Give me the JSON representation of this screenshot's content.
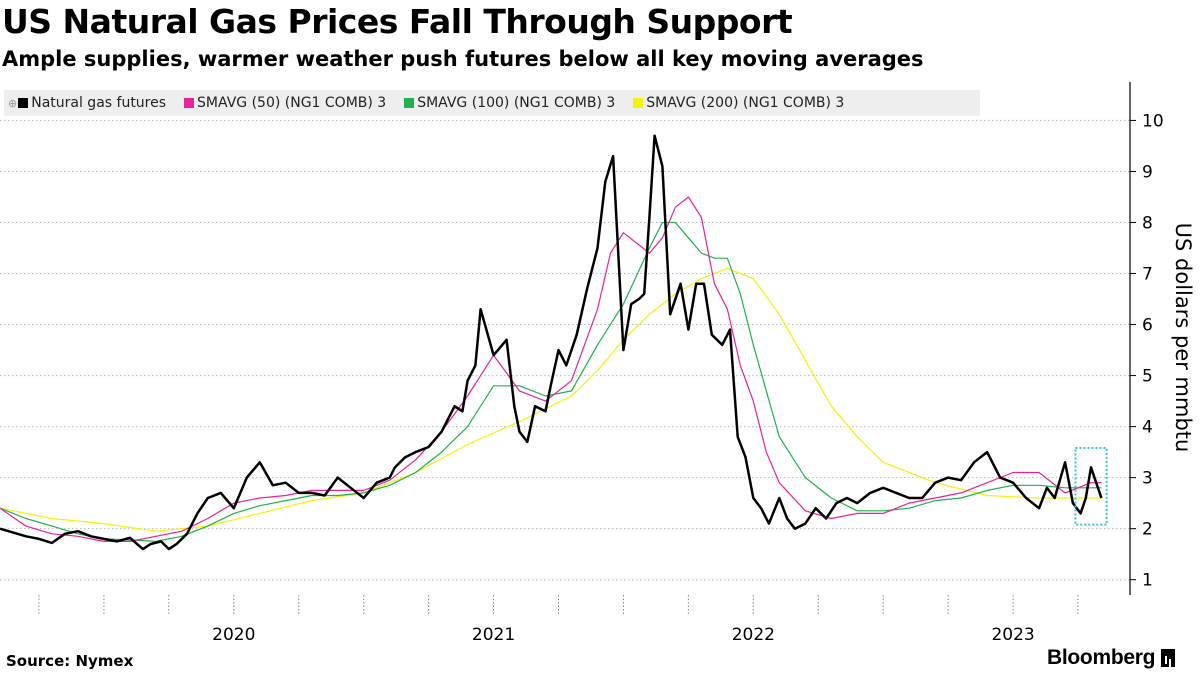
{
  "header": {
    "title": "US Natural Gas Prices Fall Through Support",
    "subtitle": "Ample supplies, warmer weather push futures below all key moving averages"
  },
  "footer": {
    "source": "Source: Nymex",
    "brand": "Bloomberg"
  },
  "colors": {
    "price": "#000000",
    "sma50": "#e8239b",
    "sma100": "#22b14c",
    "sma200": "#f2f20a",
    "highlight": "#3fbfd6",
    "grid": "#b9b9b9"
  },
  "chart_data": {
    "type": "line",
    "title": "US Natural Gas Prices Fall Through Support",
    "subtitle": "Ample supplies, warmer weather push futures below all key moving averages",
    "ylabel": "US dollars per mmbtu",
    "y_axis_position": "right",
    "ylim": [
      0.7,
      10.4
    ],
    "y_ticks": [
      1,
      2,
      3,
      4,
      5,
      6,
      7,
      8,
      9,
      10
    ],
    "x_range": [
      2019.6,
      2023.95
    ],
    "x_ticks": [
      {
        "value": 2020.0,
        "label": "2020"
      },
      {
        "value": 2021.0,
        "label": "2021"
      },
      {
        "value": 2022.0,
        "label": "2022"
      },
      {
        "value": 2023.0,
        "label": "2023"
      }
    ],
    "grid": "horizontal",
    "legend": "top-left",
    "highlight_region": {
      "x": [
        2023.74,
        2023.86
      ],
      "y": [
        2.08,
        3.58
      ],
      "style": "dotted"
    },
    "series": [
      {
        "name": "Natural gas futures",
        "color_key": "price",
        "x": [
          2019.6,
          2019.7,
          2019.75,
          2019.8,
          2019.85,
          2019.9,
          2019.95,
          2020.0,
          2020.05,
          2020.1,
          2020.15,
          2020.18,
          2020.22,
          2020.25,
          2020.28,
          2020.32,
          2020.36,
          2020.4,
          2020.45,
          2020.5,
          2020.55,
          2020.6,
          2020.65,
          2020.7,
          2020.75,
          2020.8,
          2020.85,
          2020.9,
          2020.95,
          2021.0,
          2021.05,
          2021.1,
          2021.12,
          2021.16,
          2021.2,
          2021.25,
          2021.3,
          2021.35,
          2021.38,
          2021.4,
          2021.43,
          2021.45,
          2021.5,
          2021.55,
          2021.58,
          2021.6,
          2021.63,
          2021.66,
          2021.7,
          2021.72,
          2021.75,
          2021.78,
          2021.82,
          2021.86,
          2021.9,
          2021.93,
          2021.96,
          2022.0,
          2022.03,
          2022.06,
          2022.08,
          2022.1,
          2022.12,
          2022.15,
          2022.18,
          2022.22,
          2022.25,
          2022.28,
          2022.31,
          2022.34,
          2022.38,
          2022.41,
          2022.44,
          2022.47,
          2022.5,
          2022.53,
          2022.56,
          2022.6,
          2022.63,
          2022.66,
          2022.7,
          2022.74,
          2022.78,
          2022.82,
          2022.86,
          2022.9,
          2022.95,
          2023.0,
          2023.05,
          2023.1,
          2023.15,
          2023.2,
          2023.25,
          2023.3,
          2023.35,
          2023.4,
          2023.45,
          2023.5,
          2023.55,
          2023.6,
          2023.63,
          2023.66,
          2023.7,
          2023.73,
          2023.76,
          2023.78,
          2023.8,
          2023.82,
          2023.84
        ],
        "values": [
          2.0,
          1.85,
          1.8,
          1.72,
          1.9,
          1.95,
          1.85,
          1.8,
          1.75,
          1.82,
          1.6,
          1.7,
          1.75,
          1.6,
          1.7,
          1.9,
          2.3,
          2.6,
          2.7,
          2.4,
          3.0,
          3.3,
          2.85,
          2.9,
          2.7,
          2.7,
          2.65,
          3.0,
          2.8,
          2.6,
          2.9,
          3.0,
          3.2,
          3.4,
          3.5,
          3.6,
          3.9,
          4.4,
          4.3,
          4.9,
          5.2,
          6.3,
          5.4,
          5.7,
          4.4,
          3.9,
          3.7,
          4.4,
          4.3,
          4.8,
          5.5,
          5.2,
          5.8,
          6.7,
          7.5,
          8.8,
          9.3,
          5.5,
          6.4,
          6.5,
          6.6,
          8.1,
          9.7,
          9.1,
          6.2,
          6.8,
          5.9,
          6.8,
          6.8,
          5.8,
          5.6,
          5.9,
          3.8,
          3.4,
          2.6,
          2.4,
          2.1,
          2.6,
          2.2,
          2.0,
          2.1,
          2.4,
          2.2,
          2.5,
          2.6,
          2.5,
          2.7,
          2.8,
          2.7,
          2.6,
          2.6,
          2.9,
          3.0,
          2.95,
          3.3,
          3.5,
          3.0,
          2.9,
          2.6,
          2.4,
          2.8,
          2.6,
          3.3,
          2.5,
          2.3,
          2.6,
          3.2,
          2.9,
          2.6
        ],
        "stroke_width": 2.5
      },
      {
        "name": "SMAVG (50) (NG1 COMB) 3",
        "color_key": "sma50",
        "x": [
          2019.6,
          2019.7,
          2019.8,
          2019.9,
          2020.0,
          2020.1,
          2020.2,
          2020.3,
          2020.4,
          2020.5,
          2020.6,
          2020.7,
          2020.8,
          2020.9,
          2021.0,
          2021.1,
          2021.2,
          2021.3,
          2021.4,
          2021.5,
          2021.6,
          2021.7,
          2021.8,
          2021.9,
          2021.95,
          2022.0,
          2022.05,
          2022.1,
          2022.15,
          2022.2,
          2022.25,
          2022.3,
          2022.35,
          2022.4,
          2022.45,
          2022.5,
          2022.55,
          2022.6,
          2022.7,
          2022.8,
          2022.9,
          2023.0,
          2023.1,
          2023.2,
          2023.3,
          2023.4,
          2023.5,
          2023.6,
          2023.7,
          2023.8,
          2023.84
        ],
        "values": [
          2.4,
          2.05,
          1.9,
          1.85,
          1.75,
          1.75,
          1.85,
          1.95,
          2.2,
          2.5,
          2.6,
          2.65,
          2.75,
          2.75,
          2.75,
          2.95,
          3.35,
          3.9,
          4.6,
          5.4,
          4.7,
          4.5,
          4.9,
          6.3,
          7.4,
          7.8,
          7.6,
          7.4,
          7.7,
          8.3,
          8.5,
          8.1,
          6.8,
          6.3,
          5.2,
          4.5,
          3.5,
          2.9,
          2.35,
          2.2,
          2.3,
          2.3,
          2.5,
          2.6,
          2.7,
          2.9,
          3.1,
          3.1,
          2.7,
          2.9,
          2.9
        ]
      },
      {
        "name": "SMAVG (100) (NG1 COMB) 3",
        "color_key": "sma100",
        "x": [
          2019.6,
          2019.7,
          2019.8,
          2019.9,
          2020.0,
          2020.1,
          2020.2,
          2020.3,
          2020.4,
          2020.5,
          2020.6,
          2020.7,
          2020.8,
          2020.9,
          2021.0,
          2021.1,
          2021.2,
          2021.3,
          2021.4,
          2021.5,
          2021.6,
          2021.7,
          2021.8,
          2021.9,
          2022.0,
          2022.1,
          2022.15,
          2022.2,
          2022.25,
          2022.3,
          2022.35,
          2022.4,
          2022.45,
          2022.5,
          2022.55,
          2022.6,
          2022.7,
          2022.8,
          2022.9,
          2023.0,
          2023.1,
          2023.2,
          2023.3,
          2023.4,
          2023.5,
          2023.6,
          2023.7,
          2023.8,
          2023.84
        ],
        "values": [
          2.4,
          2.2,
          2.05,
          1.9,
          1.8,
          1.78,
          1.75,
          1.85,
          2.05,
          2.3,
          2.45,
          2.55,
          2.65,
          2.65,
          2.7,
          2.85,
          3.1,
          3.5,
          4.0,
          4.8,
          4.8,
          4.6,
          4.7,
          5.6,
          6.4,
          7.5,
          8.0,
          8.0,
          7.7,
          7.4,
          7.3,
          7.3,
          6.6,
          5.6,
          4.7,
          3.8,
          3.0,
          2.6,
          2.35,
          2.35,
          2.4,
          2.55,
          2.6,
          2.75,
          2.85,
          2.85,
          2.8,
          2.8,
          2.8
        ]
      },
      {
        "name": "SMAVG (200) (NG1 COMB) 3",
        "color_key": "sma200",
        "x": [
          2019.6,
          2019.8,
          2020.0,
          2020.2,
          2020.4,
          2020.6,
          2020.8,
          2021.0,
          2021.2,
          2021.4,
          2021.6,
          2021.8,
          2021.9,
          2022.0,
          2022.1,
          2022.2,
          2022.3,
          2022.4,
          2022.5,
          2022.6,
          2022.7,
          2022.8,
          2022.9,
          2023.0,
          2023.2,
          2023.4,
          2023.6,
          2023.7,
          2023.8,
          2023.84
        ],
        "values": [
          2.4,
          2.2,
          2.1,
          1.95,
          2.05,
          2.3,
          2.55,
          2.7,
          3.1,
          3.65,
          4.1,
          4.6,
          5.1,
          5.7,
          6.2,
          6.6,
          6.9,
          7.1,
          6.9,
          6.2,
          5.3,
          4.4,
          3.8,
          3.3,
          2.9,
          2.65,
          2.6,
          2.6,
          2.6,
          2.6
        ]
      }
    ]
  }
}
